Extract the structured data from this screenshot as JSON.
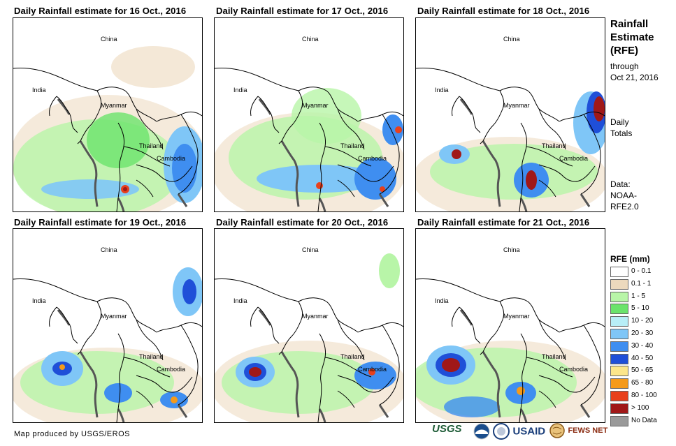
{
  "panels": [
    {
      "title": "Daily Rainfall estimate for 16 Oct., 2016",
      "labels": {
        "china": "China",
        "india": "India",
        "myanmar": "Myanmar",
        "thailand": "Thailand",
        "cambodia": "Cambodia"
      }
    },
    {
      "title": "Daily Rainfall estimate for 17 Oct., 2016",
      "labels": {
        "china": "China",
        "india": "India",
        "myanmar": "Myanmar",
        "thailand": "Thailand",
        "cambodia": "Cambodia"
      }
    },
    {
      "title": "Daily Rainfall estimate for 18 Oct., 2016",
      "labels": {
        "china": "China",
        "india": "India",
        "myanmar": "Myanmar",
        "thailand": "Thailand",
        "cambodia": "Cambodia"
      }
    },
    {
      "title": "Daily Rainfall estimate for 19 Oct., 2016",
      "labels": {
        "china": "China",
        "india": "India",
        "myanmar": "Myanmar",
        "thailand": "Thailand",
        "cambodia": "Cambodia"
      }
    },
    {
      "title": "Daily Rainfall estimate for 20 Oct., 2016",
      "labels": {
        "china": "China",
        "india": "India",
        "myanmar": "Myanmar",
        "thailand": "Thailand",
        "cambodia": "Cambodia"
      }
    },
    {
      "title": "Daily Rainfall estimate for 21 Oct., 2016",
      "labels": {
        "china": "China",
        "india": "India",
        "myanmar": "Myanmar",
        "thailand": "Thailand",
        "cambodia": "Cambodia"
      }
    }
  ],
  "sidebar": {
    "title_line1": "Rainfall",
    "title_line2": "Estimate",
    "title_line3": "(RFE)",
    "through_line1": "through",
    "through_line2": "Oct 21, 2016",
    "daily_line1": "Daily",
    "daily_line2": "Totals",
    "data_line1": "Data:",
    "data_line2": "NOAA-",
    "data_line3": "RFE2.0"
  },
  "legend": {
    "title": "RFE (mm)",
    "items": [
      {
        "label": "0 - 0.1",
        "color": "#ffffff"
      },
      {
        "label": "0.1 - 1",
        "color": "#ecd9bd"
      },
      {
        "label": "1 - 5",
        "color": "#b8f5a8"
      },
      {
        "label": "5 - 10",
        "color": "#6be36b"
      },
      {
        "label": "10 - 20",
        "color": "#b8eef7"
      },
      {
        "label": "20 - 30",
        "color": "#7fc6f7"
      },
      {
        "label": "30 - 40",
        "color": "#3f8ef0"
      },
      {
        "label": "40 - 50",
        "color": "#1f4fd8"
      },
      {
        "label": "50 - 65",
        "color": "#fce68a"
      },
      {
        "label": "65 - 80",
        "color": "#f59a1a"
      },
      {
        "label": "80 - 100",
        "color": "#e8401c"
      },
      {
        "label": "> 100",
        "color": "#a01818"
      },
      {
        "label": "No Data",
        "color": "#9a9a9a"
      }
    ]
  },
  "credit": "Map produced by USGS/EROS",
  "logos": {
    "usgs": "USGS",
    "usaid": "USAID",
    "fewsnet": "FEWS NET"
  }
}
